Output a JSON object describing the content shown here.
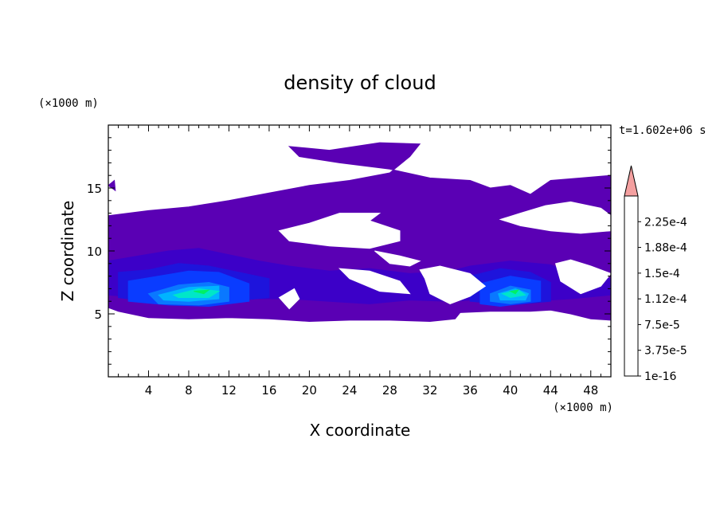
{
  "chart_data": {
    "type": "heatmap",
    "title": "density of cloud",
    "xlabel": "X coordinate",
    "ylabel": "Z coordinate",
    "x_unit_label": "(×1000 m)",
    "y_unit_label": "(×1000 m)",
    "time_label": "t=1.602e+06 s",
    "xlim": [
      0,
      50
    ],
    "ylim": [
      0,
      20
    ],
    "x_ticks": [
      4,
      8,
      12,
      16,
      20,
      24,
      28,
      32,
      36,
      40,
      44,
      48
    ],
    "y_ticks": [
      5,
      10,
      15
    ],
    "colorbar": {
      "levels": [
        1e-16,
        1.875e-05,
        3.75e-05,
        5.625e-05,
        7.5e-05,
        9.375e-05,
        0.0001125,
        0.00013125,
        0.00015,
        0.00016875,
        0.0001875,
        0.00020625,
        0.000225,
        0.00024375
      ],
      "tick_labels": [
        "1e-16",
        "3.75e-5",
        "7.5e-5",
        "1.12e-4",
        "1.5e-4",
        "1.88e-4",
        "2.25e-4"
      ],
      "colors": [
        "#5a00b4",
        "#3c00c8",
        "#1e14dc",
        "#0a3cff",
        "#0a78ff",
        "#00b4ff",
        "#00e6c8",
        "#00f064",
        "#64f000",
        "#dcf000",
        "#ffc800",
        "#ff8c00",
        "#ff5000",
        "#ff1e00"
      ],
      "overflow_color": "#f4a0a0"
    },
    "cloud_regions": [
      {
        "level": 0,
        "points": [
          [
            0,
            12.8
          ],
          [
            4,
            13.2
          ],
          [
            8,
            13.5
          ],
          [
            12,
            14
          ],
          [
            16,
            14.6
          ],
          [
            20,
            15.2
          ],
          [
            24,
            15.6
          ],
          [
            28,
            16.2
          ],
          [
            30,
            17.5
          ],
          [
            31,
            18.5
          ],
          [
            27,
            18.6
          ],
          [
            22,
            18
          ],
          [
            18,
            18.3
          ],
          [
            19,
            17.5
          ],
          [
            23,
            17
          ],
          [
            28,
            16.5
          ],
          [
            32,
            15.8
          ],
          [
            36,
            15.6
          ],
          [
            38,
            15
          ],
          [
            40,
            15.2
          ],
          [
            42,
            14.5
          ],
          [
            44,
            15.6
          ],
          [
            47,
            15.8
          ],
          [
            50,
            16
          ],
          [
            50,
            4.5
          ],
          [
            48,
            4.6
          ],
          [
            46,
            5
          ],
          [
            44,
            5.3
          ],
          [
            42,
            5.2
          ],
          [
            38,
            5.2
          ],
          [
            35,
            5.1
          ],
          [
            34.5,
            4.6
          ],
          [
            32,
            4.4
          ],
          [
            28,
            4.5
          ],
          [
            24,
            4.5
          ],
          [
            20,
            4.4
          ],
          [
            16,
            4.6
          ],
          [
            12,
            4.7
          ],
          [
            8,
            4.6
          ],
          [
            4,
            4.7
          ],
          [
            1,
            5.2
          ],
          [
            0,
            5.5
          ]
        ]
      },
      {
        "level": 0,
        "points": [
          [
            0,
            15.2
          ],
          [
            0.7,
            14.8
          ],
          [
            0.6,
            15.6
          ]
        ]
      },
      {
        "level": 1,
        "points": [
          [
            0,
            9.2
          ],
          [
            3,
            9.6
          ],
          [
            6,
            10
          ],
          [
            9,
            10.2
          ],
          [
            12,
            9.7
          ],
          [
            15,
            9.2
          ],
          [
            18,
            8.8
          ],
          [
            22,
            8.4
          ],
          [
            26,
            8.6
          ],
          [
            30,
            8.2
          ],
          [
            34,
            8.4
          ],
          [
            36,
            8.8
          ],
          [
            40,
            9.2
          ],
          [
            44,
            8.9
          ],
          [
            47,
            8
          ],
          [
            50,
            7.8
          ],
          [
            50,
            6.5
          ],
          [
            46,
            6.2
          ],
          [
            42,
            6
          ],
          [
            38,
            6.2
          ],
          [
            34,
            6
          ],
          [
            30,
            6.1
          ],
          [
            26,
            5.8
          ],
          [
            22,
            6
          ],
          [
            18,
            6.2
          ],
          [
            14,
            6.2
          ],
          [
            10,
            6
          ],
          [
            6,
            6.1
          ],
          [
            3,
            6.3
          ],
          [
            0,
            6.5
          ]
        ]
      },
      {
        "level": 2,
        "points": [
          [
            1,
            8.3
          ],
          [
            4,
            8.5
          ],
          [
            7,
            9
          ],
          [
            10,
            8.8
          ],
          [
            13,
            8.3
          ],
          [
            16,
            7.8
          ],
          [
            16,
            6.3
          ],
          [
            12,
            6
          ],
          [
            8,
            5.8
          ],
          [
            4,
            6
          ],
          [
            1,
            6.3
          ]
        ]
      },
      {
        "level": 2,
        "points": [
          [
            36,
            8
          ],
          [
            39,
            8.6
          ],
          [
            42,
            8.3
          ],
          [
            44,
            7.5
          ],
          [
            44,
            6
          ],
          [
            40,
            5.7
          ],
          [
            36,
            6
          ]
        ]
      },
      {
        "level": 3,
        "points": [
          [
            2,
            7.6
          ],
          [
            5,
            8
          ],
          [
            8,
            8.4
          ],
          [
            11,
            8.3
          ],
          [
            14,
            7.4
          ],
          [
            14,
            6
          ],
          [
            10,
            5.6
          ],
          [
            6,
            5.7
          ],
          [
            2,
            6
          ]
        ]
      },
      {
        "level": 3,
        "points": [
          [
            37,
            7.4
          ],
          [
            40,
            8
          ],
          [
            43,
            7.6
          ],
          [
            43,
            6
          ],
          [
            39,
            5.6
          ],
          [
            37,
            5.8
          ]
        ]
      },
      {
        "level": 4,
        "points": [
          [
            4,
            6.6
          ],
          [
            7,
            7.3
          ],
          [
            10,
            7.5
          ],
          [
            12,
            7.1
          ],
          [
            12,
            6
          ],
          [
            9,
            5.7
          ],
          [
            5,
            5.8
          ]
        ]
      },
      {
        "level": 4,
        "points": [
          [
            38,
            6.6
          ],
          [
            40,
            7.2
          ],
          [
            42,
            6.9
          ],
          [
            42,
            6
          ],
          [
            40,
            5.8
          ],
          [
            38,
            6
          ]
        ]
      },
      {
        "level": 5,
        "points": [
          [
            5,
            6.5
          ],
          [
            8,
            7.1
          ],
          [
            11,
            7.2
          ],
          [
            11,
            6.2
          ],
          [
            8,
            6
          ],
          [
            5.5,
            6.1
          ]
        ]
      },
      {
        "level": 5,
        "points": [
          [
            38.8,
            6.6
          ],
          [
            40.5,
            7
          ],
          [
            41.8,
            6.6
          ],
          [
            41.5,
            6.1
          ],
          [
            39,
            6.1
          ]
        ]
      },
      {
        "level": 6,
        "points": [
          [
            6.5,
            6.5
          ],
          [
            9,
            7
          ],
          [
            11,
            6.8
          ],
          [
            10,
            6.3
          ],
          [
            7,
            6.3
          ]
        ]
      },
      {
        "level": 6,
        "points": [
          [
            39.2,
            6.6
          ],
          [
            40.8,
            6.9
          ],
          [
            41.5,
            6.5
          ],
          [
            40,
            6.3
          ]
        ]
      },
      {
        "level": 7,
        "points": [
          [
            8.5,
            6.8
          ],
          [
            10,
            6.9
          ],
          [
            9.5,
            6.6
          ]
        ]
      },
      {
        "level": 7,
        "points": [
          [
            40,
            6.8
          ],
          [
            40.8,
            6.9
          ],
          [
            40.5,
            6.6
          ]
        ]
      }
    ],
    "clear_regions": [
      {
        "points": [
          [
            20,
            12.2
          ],
          [
            23,
            13
          ],
          [
            27,
            13
          ],
          [
            26,
            12.4
          ],
          [
            29,
            11.6
          ],
          [
            29,
            10.8
          ],
          [
            26,
            10.2
          ],
          [
            22,
            10.4
          ],
          [
            18,
            10.8
          ],
          [
            17,
            11.6
          ]
        ]
      },
      {
        "points": [
          [
            26.5,
            10
          ],
          [
            29,
            9.6
          ],
          [
            31,
            9.2
          ],
          [
            30,
            8.8
          ],
          [
            28,
            9
          ]
        ]
      },
      {
        "points": [
          [
            23,
            8.6
          ],
          [
            26,
            8.4
          ],
          [
            29,
            7.6
          ],
          [
            30,
            6.6
          ],
          [
            27,
            6.8
          ],
          [
            24,
            7.8
          ]
        ]
      },
      {
        "points": [
          [
            31,
            8.5
          ],
          [
            33,
            8.8
          ],
          [
            36,
            8.2
          ],
          [
            37.5,
            7.2
          ],
          [
            36,
            6.4
          ],
          [
            34,
            5.8
          ],
          [
            32,
            6.6
          ],
          [
            31.5,
            7.8
          ]
        ]
      },
      {
        "points": [
          [
            17,
            6.3
          ],
          [
            18.5,
            7
          ],
          [
            19,
            6.2
          ],
          [
            18,
            5.4
          ]
        ]
      },
      {
        "points": [
          [
            39,
            12.5
          ],
          [
            41,
            13
          ],
          [
            43.5,
            13.6
          ],
          [
            46,
            13.9
          ],
          [
            49,
            13.4
          ],
          [
            50,
            12.8
          ],
          [
            50,
            11.6
          ],
          [
            47,
            11.4
          ],
          [
            44,
            11.6
          ],
          [
            41,
            12
          ]
        ]
      },
      {
        "points": [
          [
            44.5,
            9
          ],
          [
            46,
            9.3
          ],
          [
            48,
            8.8
          ],
          [
            50,
            8.2
          ],
          [
            49,
            7.2
          ],
          [
            47,
            6.6
          ],
          [
            45,
            7.6
          ]
        ]
      }
    ]
  }
}
